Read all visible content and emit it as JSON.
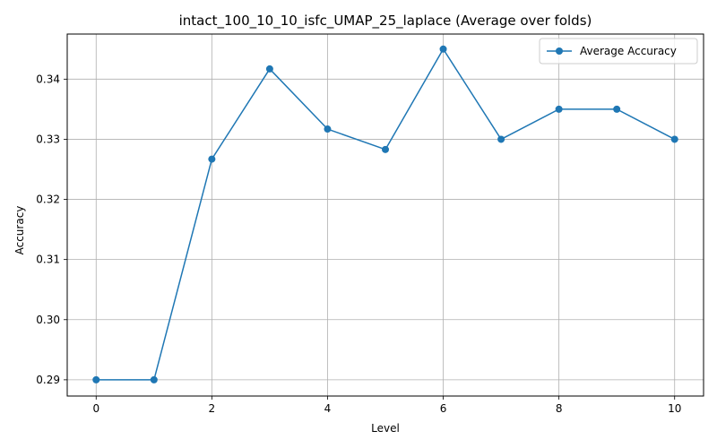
{
  "chart_data": {
    "type": "line",
    "title": "intact_100_10_10_isfc_UMAP_25_laplace (Average over folds)",
    "xlabel": "Level",
    "ylabel": "Accuracy",
    "xlim": [
      -0.5,
      10.5
    ],
    "ylim": [
      0.2873,
      0.3475
    ],
    "xticks": [
      0,
      2,
      4,
      6,
      8,
      10
    ],
    "xtick_labels": [
      "0",
      "2",
      "4",
      "6",
      "8",
      "10"
    ],
    "yticks": [
      0.29,
      0.3,
      0.31,
      0.32,
      0.33,
      0.34
    ],
    "ytick_labels": [
      "0.29",
      "0.30",
      "0.31",
      "0.32",
      "0.33",
      "0.34"
    ],
    "grid": true,
    "legend_position": "top-right",
    "series": [
      {
        "name": "Average Accuracy",
        "color": "#1f77b4",
        "marker": "circle",
        "x": [
          0,
          1,
          2,
          3,
          4,
          5,
          6,
          7,
          8,
          9,
          10
        ],
        "y": [
          0.29,
          0.29,
          0.3267,
          0.3417,
          0.3317,
          0.3283,
          0.345,
          0.33,
          0.335,
          0.335,
          0.33
        ]
      }
    ]
  }
}
